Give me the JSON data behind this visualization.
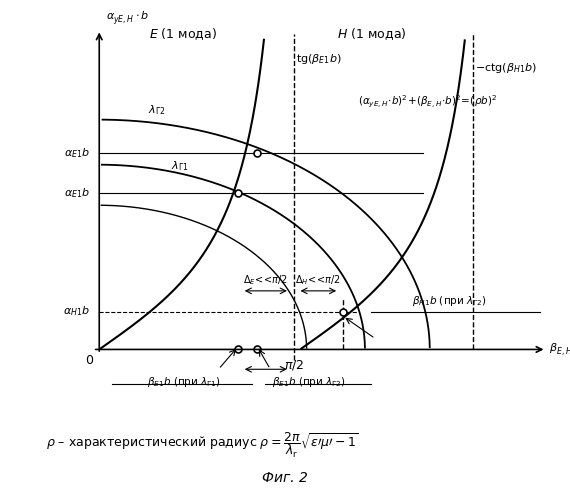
{
  "title": "",
  "fig_label": "Фиг. 2",
  "formula_text": "ρ – характеристический радиус",
  "background_color": "#ffffff",
  "axis_color": "#000000",
  "curve_color": "#000000",
  "dashed_color": "#000000",
  "ylabel": "α_{yE,H}· b",
  "xlabel": "β_{E,H}·b",
  "pi2_label": "π/2",
  "E_mode_label": "E (1 мода)",
  "H_mode_label": "H (1 мода)",
  "tg_label": "tg(β_{E1}b)",
  "ctg_label": "-ctg(β_{H1}b)",
  "lambda_G2_label": "λ_{Γ2}",
  "lambda_G1_label": "λ_{Γ1}",
  "circle_eqn": "(α_{yE,H}·b)²+( β_{E,H}·b)²=(pb)²",
  "alpha_E1b_upper": "α_{E1}b",
  "alpha_E1b_lower": "α_{E1}b",
  "alpha_H1b": "α_{H1}b",
  "beta_H1b": "β_{H1}b (при λ_{Γ2})",
  "beta_E1_lG1": "β_{E1}b (при λ_{Γ 1})",
  "beta_E1_lG2": "β_{E1}b (при λ_{Γ 2})",
  "delta_E": "Δ_E <<π/2",
  "delta_H": "Δ_H <<π/2"
}
